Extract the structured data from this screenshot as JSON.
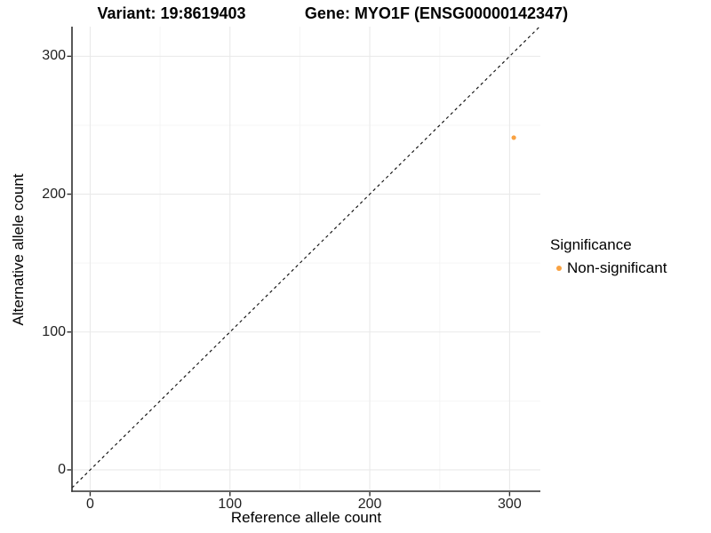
{
  "chart_data": {
    "type": "scatter",
    "title_left": "Variant: 19:8619403",
    "title_right": "Gene: MYO1F (ENSG00000142347)",
    "xlabel": "Reference allele count",
    "ylabel": "Alternative allele count",
    "x_ticks": [
      0,
      100,
      200,
      300
    ],
    "y_ticks": [
      0,
      100,
      200,
      300
    ],
    "x_minor": [
      50,
      150,
      250
    ],
    "y_minor": [
      50,
      150,
      250
    ],
    "xlim": [
      -13,
      322
    ],
    "ylim": [
      -15.5,
      321.5
    ],
    "grid": true,
    "identity_line": {
      "equation": "y = x",
      "style": "dashed",
      "color": "#111111"
    },
    "series": [
      {
        "name": "Non-significant",
        "color": "#F9A242",
        "points": [
          {
            "x": 303,
            "y": 241
          }
        ]
      }
    ],
    "legend": {
      "title": "Significance",
      "position": "right",
      "entries": [
        {
          "label": "Non-significant",
          "color": "#F9A242"
        }
      ]
    },
    "colors": {
      "grid_major": "#E9E9E9",
      "grid_minor": "#F5F5F5",
      "axis_line": "#2E2E2E",
      "tick_mark": "#2E2E2E"
    }
  }
}
